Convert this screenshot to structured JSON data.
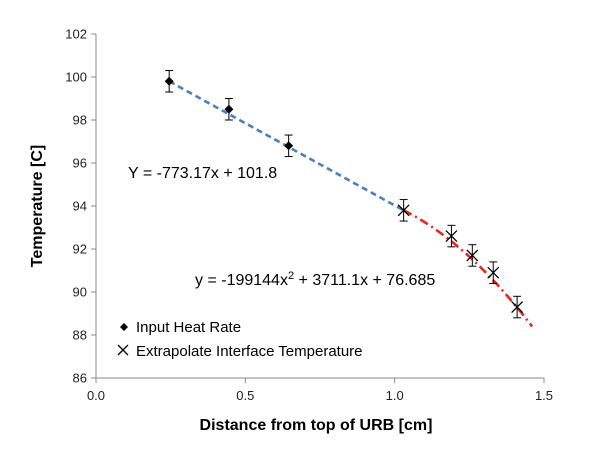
{
  "chart_data": {
    "type": "scatter",
    "xlabel": "Distance from top of URB [cm]",
    "ylabel": "Temperature [C]",
    "xlim": [
      0.0,
      1.5
    ],
    "ylim": [
      86,
      102
    ],
    "x_ticks": [
      "0.0",
      "0.5",
      "1.0",
      "1.5"
    ],
    "y_ticks": [
      "86",
      "88",
      "90",
      "92",
      "94",
      "96",
      "98",
      "100",
      "102"
    ],
    "grid": false,
    "legend_position": "bottom-left",
    "series": [
      {
        "name": "Input Heat Rate",
        "marker": "diamond",
        "color": "#000000",
        "x": [
          0.245,
          0.445,
          0.645
        ],
        "y": [
          99.8,
          98.5,
          96.8
        ],
        "error": [
          0.5,
          0.5,
          0.5
        ]
      },
      {
        "name": "Extrapolate Interface Temperature",
        "marker": "x",
        "color": "#000000",
        "x": [
          1.03,
          1.19,
          1.26,
          1.33,
          1.41
        ],
        "y": [
          93.8,
          92.6,
          91.7,
          90.9,
          89.3
        ],
        "error": [
          0.5,
          0.5,
          0.5,
          0.5,
          0.5
        ]
      }
    ],
    "fits": [
      {
        "equation": "Y = -773.17x + 101.8",
        "kind": "linear",
        "coefficients": [
          -773.17,
          101.8
        ],
        "color": "#4a7fbf",
        "style": "dashed",
        "x_range": [
          0.245,
          1.03
        ]
      },
      {
        "equation_prefix": "y = -199144x",
        "equation_sup": "2",
        "equation_suffix": " + 3711.1x + 76.685",
        "kind": "quadratic",
        "coefficients": [
          -199144,
          3711.1,
          76.685
        ],
        "color": "#e0291f",
        "style": "dash-dot",
        "x_range": [
          1.03,
          1.46
        ],
        "y_at_range": [
          93.8,
          88.4
        ]
      }
    ]
  }
}
